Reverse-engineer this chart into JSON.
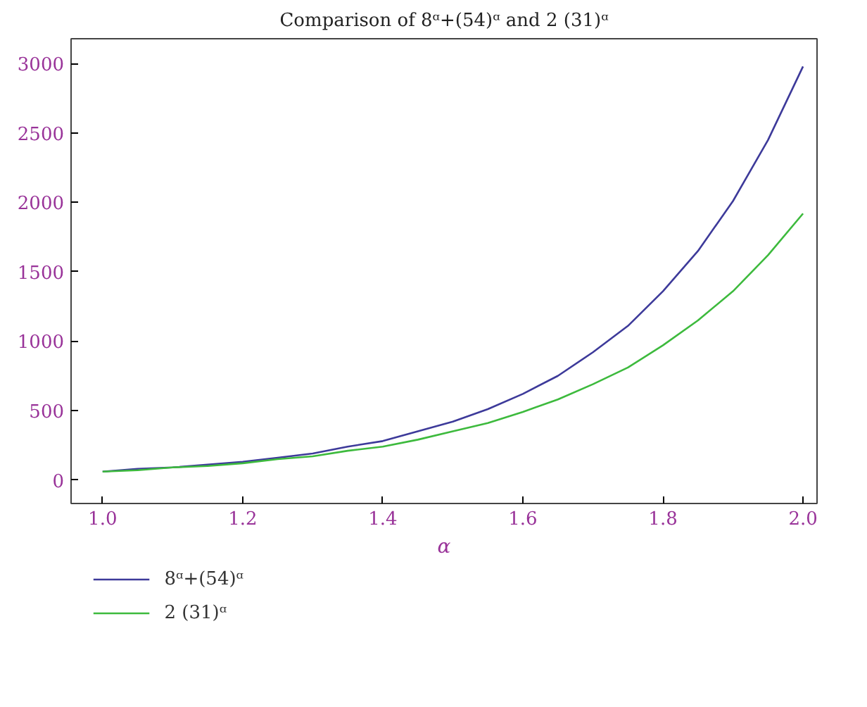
{
  "chart_data": {
    "type": "line",
    "title": "Comparison of 8ᵅ+(54)ᵅ and 2 (31)ᵅ",
    "xlabel": "α",
    "x": [
      1.0,
      1.05,
      1.1,
      1.15,
      1.2,
      1.25,
      1.3,
      1.35,
      1.4,
      1.45,
      1.5,
      1.55,
      1.6,
      1.65,
      1.7,
      1.75,
      1.8,
      1.85,
      1.9,
      1.95,
      2.0
    ],
    "series": [
      {
        "name": "8ᵅ+(54)ᵅ",
        "color": "#3d3a9a",
        "values": [
          60,
          80,
          90,
          110,
          130,
          160,
          190,
          240,
          280,
          350,
          420,
          510,
          620,
          750,
          920,
          1110,
          1360,
          1650,
          2010,
          2450,
          2980
        ]
      },
      {
        "name": "2 (31)ᵅ",
        "color": "#3dba3d",
        "values": [
          60,
          70,
          90,
          100,
          120,
          150,
          170,
          210,
          240,
          290,
          350,
          410,
          490,
          580,
          690,
          810,
          970,
          1150,
          1360,
          1620,
          1920
        ]
      }
    ],
    "xlim": [
      0.955,
      2.02
    ],
    "ylim": [
      -170,
      3180
    ],
    "xticks": [
      {
        "value": 1.0,
        "label": "1.0"
      },
      1.2,
      1.4,
      1.6,
      1.8,
      {
        "value": 2.0,
        "label": "2.0"
      }
    ],
    "yticks": [
      0,
      500,
      1000,
      1500,
      2000,
      2500,
      3000
    ],
    "grid": false,
    "legend": "bottom left",
    "marker": "none",
    "line_style": "solid"
  }
}
